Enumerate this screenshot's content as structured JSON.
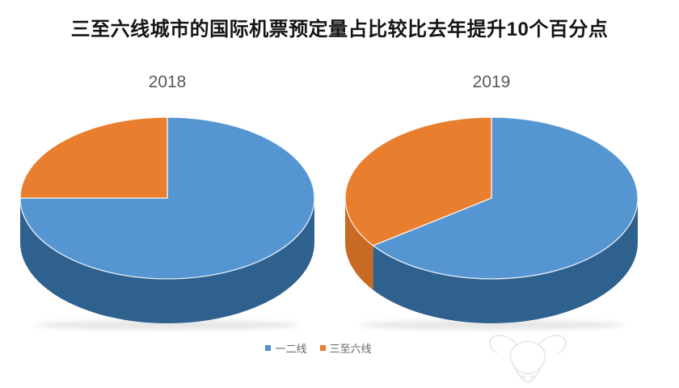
{
  "title": "三至六线城市的国际机票预定量占比较比去年提升10个百分点",
  "legend": {
    "items": [
      {
        "label": "一二线",
        "color": "#4E8FCD"
      },
      {
        "label": "三至六线",
        "color": "#E87E2E"
      }
    ]
  },
  "watermark": {
    "name": "bull-logo"
  },
  "colors": {
    "blue_top": "#5595D2",
    "blue_side": "#2E618E",
    "orange_top": "#E87E2E",
    "orange_side": "#C96A24",
    "divider": "rgba(255,255,255,0.85)",
    "title_text": "#151515",
    "year_text": "#595959",
    "legend_text": "#666666"
  },
  "chart_data": [
    {
      "type": "pie",
      "style": "3d",
      "title": "2018",
      "labels": [
        "一二线",
        "三至六线"
      ],
      "values": [
        75,
        25
      ],
      "unit": "%",
      "colors": [
        "#5595D2",
        "#E87E2E"
      ],
      "side_colors": [
        "#2E618E",
        "#C96A24"
      ],
      "start_angle_deg": 0,
      "direction": "clockwise",
      "legend_position": "bottom"
    },
    {
      "type": "pie",
      "style": "3d",
      "title": "2019",
      "labels": [
        "一二线",
        "三至六线"
      ],
      "values": [
        65,
        35
      ],
      "unit": "%",
      "colors": [
        "#5595D2",
        "#E87E2E"
      ],
      "side_colors": [
        "#2E618E",
        "#C96A24"
      ],
      "start_angle_deg": 0,
      "direction": "clockwise",
      "legend_position": "bottom"
    }
  ]
}
